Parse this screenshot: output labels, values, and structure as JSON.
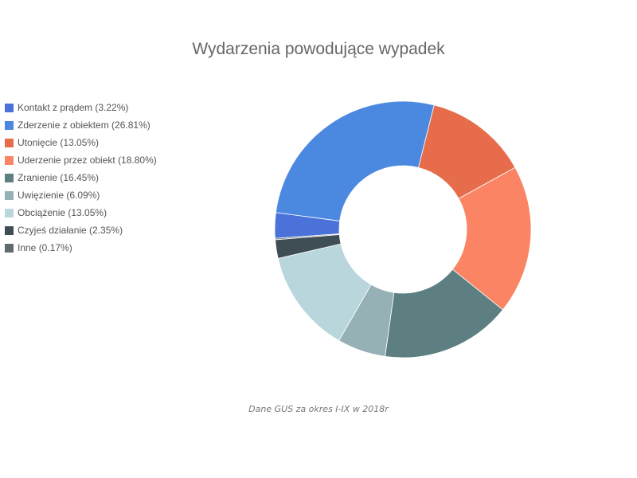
{
  "chart_data": {
    "type": "pie",
    "title": "Wydarzenia powodujące wypadek",
    "variant": "donut",
    "legend_position": "left",
    "categories": [
      "Kontakt z prądem",
      "Zderzenie z obiektem",
      "Utonięcie",
      "Uderzenie przez obiekt",
      "Zranienie",
      "Uwięzienie",
      "Obciążenie",
      "Czyjeś działanie",
      "Inne"
    ],
    "values": [
      3.22,
      26.81,
      13.05,
      18.8,
      16.45,
      6.09,
      13.05,
      2.35,
      0.17
    ],
    "legend_labels": [
      "Kontakt z prądem (3.22%)",
      "Zderzenie z obiektem (26.81%)",
      "Utonięcie (13.05%)",
      "Uderzenie przez obiekt (18.80%)",
      "Zranienie (16.45%)",
      "Uwięzienie (6.09%)",
      "Obciążenie (13.05%)",
      "Czyjeś działanie (2.35%)",
      "Inne (0.17%)"
    ],
    "colors": [
      "#4a72d9",
      "#4b89e0",
      "#e66c4b",
      "#fa8463",
      "#5e7f82",
      "#95b1b5",
      "#b8d6db",
      "#3e4e54",
      "#5f6b6e"
    ],
    "annotation": "Dane GUS  za okres I-IX w 2018r"
  }
}
